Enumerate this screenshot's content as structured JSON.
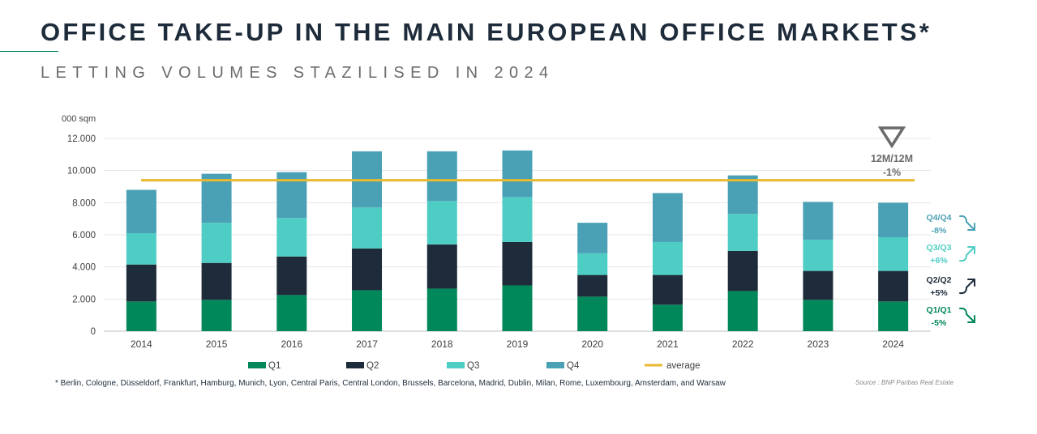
{
  "header": {
    "title": "OFFICE TAKE-UP IN THE MAIN EUROPEAN OFFICE MARKETS*",
    "subtitle": "LETTING VOLUMES STAZILISED IN 2024"
  },
  "footer": {
    "footnote": "* Berlin, Cologne, Düsseldorf, Frankfurt, Hamburg, Munich, Lyon, Central Paris, Central London, Brussels, Barcelona, Madrid, Dublin, Milan, Rome, Luxembourg, Amsterdam, and Warsaw",
    "source": "Source : BNP Paribas Real Estate"
  },
  "colors": {
    "q1": "#00875a",
    "q2": "#1d2b3a",
    "q3": "#4ecdc4",
    "q4": "#4aa0b5",
    "average": "#e8b931",
    "arrow_gray": "#6b6b6b"
  },
  "chart_data": {
    "type": "bar",
    "stacked": true,
    "ylabel": "000 sqm",
    "ylim": [
      0,
      12000
    ],
    "yticks": [
      0,
      2000,
      4000,
      6000,
      8000,
      10000,
      12000
    ],
    "ytick_labels": [
      "0",
      "2.000",
      "4.000",
      "6.000",
      "8.000",
      "10.000",
      "12.000"
    ],
    "categories": [
      "2014",
      "2015",
      "2016",
      "2017",
      "2018",
      "2019",
      "2020",
      "2021",
      "2022",
      "2023",
      "2024"
    ],
    "series": [
      {
        "name": "Q1",
        "values": [
          1850,
          1950,
          2250,
          2550,
          2650,
          2850,
          2150,
          1650,
          2500,
          1950,
          1850
        ]
      },
      {
        "name": "Q2",
        "values": [
          2300,
          2300,
          2400,
          2600,
          2750,
          2700,
          1350,
          1850,
          2500,
          1800,
          1900
        ]
      },
      {
        "name": "Q3",
        "values": [
          1950,
          2500,
          2400,
          2550,
          2700,
          2800,
          1350,
          2050,
          2300,
          1950,
          2100
        ]
      },
      {
        "name": "Q4",
        "values": [
          2700,
          3050,
          2850,
          3500,
          3100,
          2900,
          1900,
          3050,
          2400,
          2350,
          2150
        ]
      }
    ],
    "average": {
      "name": "average",
      "value": 9400
    },
    "annotations": {
      "total": {
        "label": "12M/12M",
        "change": "-1%",
        "direction": "down"
      },
      "quarters": [
        {
          "label": "Q4/Q4",
          "change": "-8%",
          "direction": "down",
          "color": "#4aa0b5"
        },
        {
          "label": "Q3/Q3",
          "change": "+6%",
          "direction": "up",
          "color": "#4ecdc4"
        },
        {
          "label": "Q2/Q2",
          "change": "+5%",
          "direction": "up",
          "color": "#1d2b3a"
        },
        {
          "label": "Q1/Q1",
          "change": "-5%",
          "direction": "down",
          "color": "#00875a"
        }
      ]
    },
    "legend": [
      "Q1",
      "Q2",
      "Q3",
      "Q4",
      "average"
    ]
  }
}
